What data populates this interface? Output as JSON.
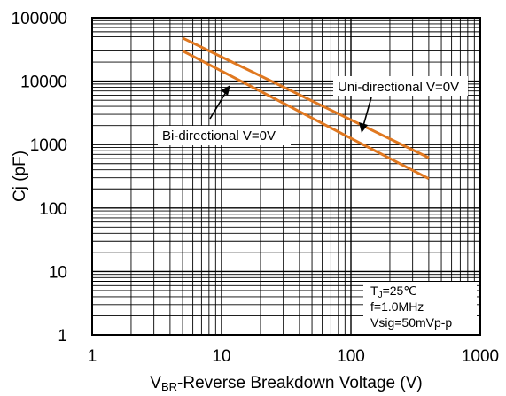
{
  "chart_data": {
    "type": "line",
    "title": "",
    "xlabel": {
      "main": "V",
      "sub": "BR",
      "rest": "-Reverse Breakdown Voltage (V)"
    },
    "ylabel": "Cj (pF)",
    "xscale": "log",
    "yscale": "log",
    "xlim": [
      1,
      1000
    ],
    "ylim": [
      1,
      100000
    ],
    "grid": true,
    "xticks": [
      "1",
      "10",
      "100",
      "1000"
    ],
    "yticks": [
      "1",
      "10",
      "100",
      "1000",
      "10000",
      "100000"
    ],
    "series_color": "#E07820",
    "series": [
      {
        "name": "Uni-directional V=0V",
        "x": [
          5,
          400
        ],
        "y": [
          48000,
          620
        ]
      },
      {
        "name": "Bi-directional V=0V",
        "x": [
          5,
          400
        ],
        "y": [
          30000,
          290
        ]
      }
    ],
    "annotations": [
      {
        "text": "Uni-directional V=0V",
        "arrow_to": {
          "x": 130,
          "y": 1300
        }
      },
      {
        "text": "Bi-directional V=0V",
        "arrow_to": {
          "x": 13,
          "y": 14000
        }
      }
    ],
    "conditions": {
      "tj_main": "T",
      "tj_sub": "J",
      "tj_rest": "=25℃",
      "freq": "f=1.0MHz",
      "vsig": "Vsig=50mVp-p"
    }
  }
}
